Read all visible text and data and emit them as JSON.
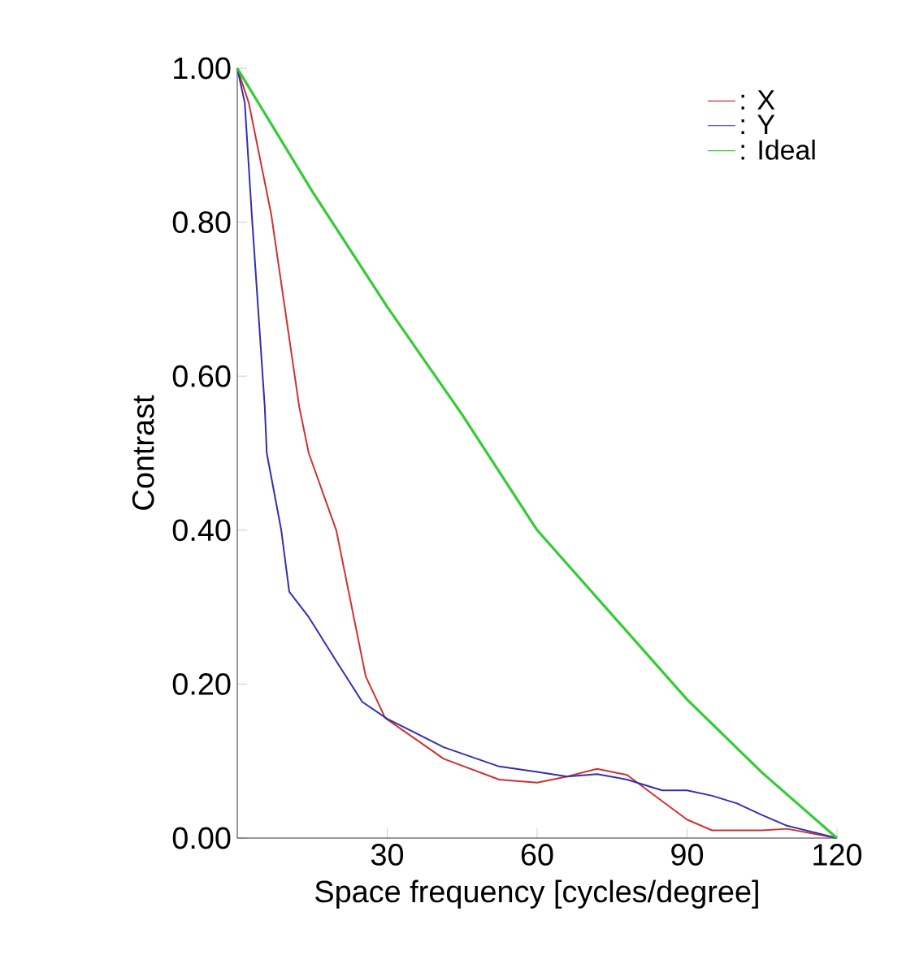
{
  "chart_data": {
    "type": "line",
    "xlabel": "Space frequency [cycles/degree]",
    "ylabel": "Contrast",
    "xlim": [
      0,
      120
    ],
    "xticks": [
      30,
      60,
      90,
      120
    ],
    "ylim": [
      0,
      1
    ],
    "yticks": [
      {
        "value": 0,
        "label": "0.00"
      },
      {
        "value": 0.2,
        "label": "0.20"
      },
      {
        "value": 0.4,
        "label": "0.40"
      },
      {
        "value": 0.6,
        "label": "0.60"
      },
      {
        "value": 0.8,
        "label": "0.80"
      },
      {
        "value": 1,
        "label": "1.00"
      }
    ],
    "grid": false,
    "legend": "top right",
    "marker": "none",
    "line_style": "solid",
    "series": [
      {
        "name": ": X",
        "color": "#d03030",
        "x": [
          0,
          2.3,
          6.8,
          12.4,
          14.3,
          19.8,
          25.7,
          29.6,
          41.3,
          52.4,
          60,
          66,
          72,
          78,
          85,
          90,
          95,
          100,
          105,
          110,
          120
        ],
        "values": [
          1,
          0.955,
          0.81,
          0.56,
          0.5,
          0.4,
          0.21,
          0.156,
          0.103,
          0.076,
          0.072,
          0.08,
          0.09,
          0.082,
          0.048,
          0.024,
          0.01,
          0.01,
          0.01,
          0.012,
          0
        ]
      },
      {
        "name": ": Y",
        "color": "#3030b0",
        "x": [
          0,
          1.5,
          2.9,
          5.5,
          5.9,
          8.8,
          10.4,
          14.3,
          19.8,
          25,
          30,
          41.3,
          52.4,
          60,
          66,
          72,
          78,
          85,
          90,
          95,
          100,
          105,
          110,
          120
        ],
        "values": [
          1,
          0.955,
          0.81,
          0.56,
          0.5,
          0.4,
          0.32,
          0.287,
          0.23,
          0.177,
          0.155,
          0.118,
          0.093,
          0.086,
          0.08,
          0.083,
          0.076,
          0.062,
          0.062,
          0.055,
          0.045,
          0.03,
          0.016,
          0
        ]
      },
      {
        "name": ": Ideal",
        "color": "#33cc33",
        "x": [
          0,
          15,
          30,
          45,
          60,
          75,
          90,
          105,
          120
        ],
        "values": [
          1,
          0.84,
          0.69,
          0.55,
          0.4,
          0.29,
          0.18,
          0.085,
          0
        ]
      }
    ]
  }
}
